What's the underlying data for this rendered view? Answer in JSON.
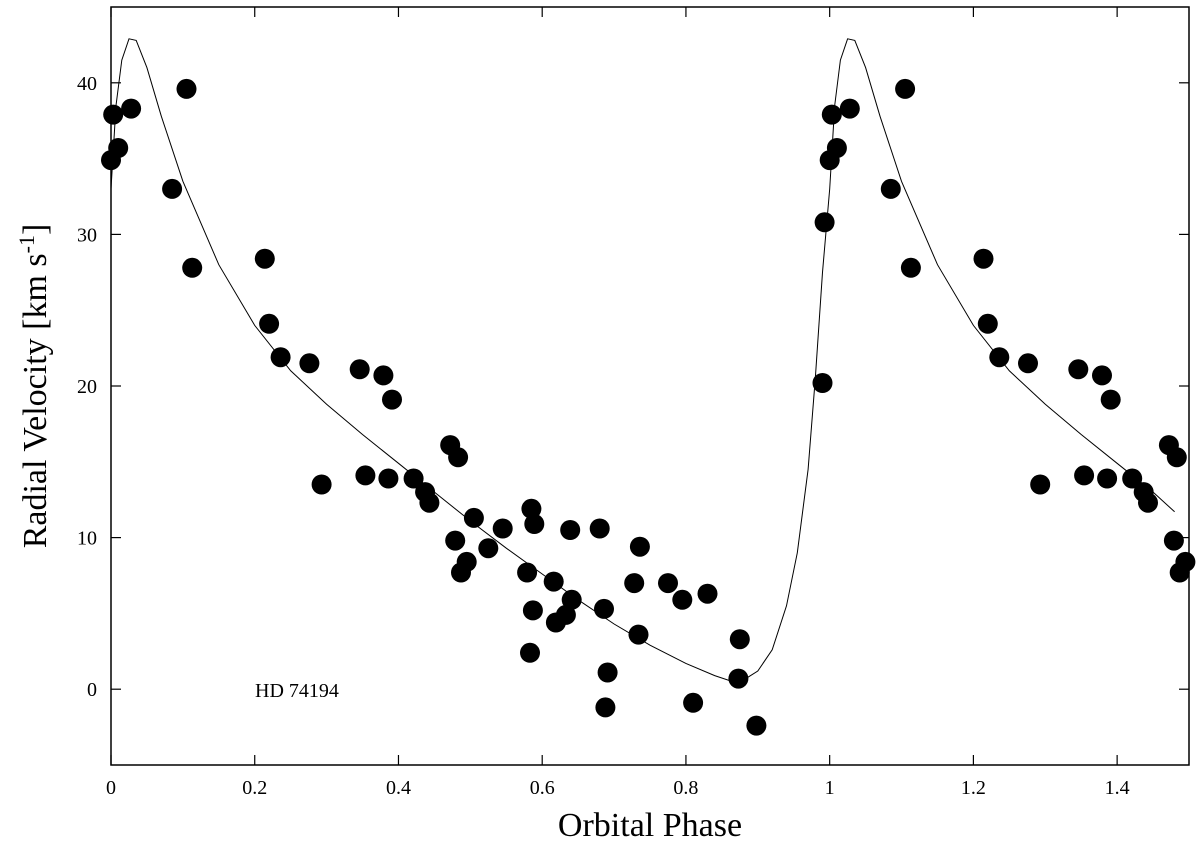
{
  "chart_data": {
    "type": "scatter",
    "title": "",
    "xlabel": "Orbital Phase",
    "ylabel_main": "Radial Velocity [km s",
    "ylabel_sup": "-1",
    "ylabel_close": "]",
    "annotation": "HD 74194",
    "xlim": [
      0,
      1.5
    ],
    "ylim": [
      -5,
      45
    ],
    "xticks": [
      {
        "v": 0,
        "label": "0"
      },
      {
        "v": 0.2,
        "label": "0.2"
      },
      {
        "v": 0.4,
        "label": "0.4"
      },
      {
        "v": 0.6,
        "label": "0.6"
      },
      {
        "v": 0.8,
        "label": "0.8"
      },
      {
        "v": 1.0,
        "label": "1"
      },
      {
        "v": 1.2,
        "label": "1.2"
      },
      {
        "v": 1.4,
        "label": "1.4"
      }
    ],
    "yticks": [
      {
        "v": 0,
        "label": "0"
      },
      {
        "v": 10,
        "label": "10"
      },
      {
        "v": 20,
        "label": "20"
      },
      {
        "v": 30,
        "label": "30"
      },
      {
        "v": 40,
        "label": "40"
      }
    ],
    "grid": false,
    "legend": "none",
    "points": [
      [
        0.0,
        34.9
      ],
      [
        0.003,
        37.9
      ],
      [
        0.01,
        35.7
      ],
      [
        0.028,
        38.3
      ],
      [
        0.085,
        33.0
      ],
      [
        0.105,
        39.6
      ],
      [
        0.113,
        27.8
      ],
      [
        0.214,
        28.4
      ],
      [
        0.22,
        24.1
      ],
      [
        0.236,
        21.9
      ],
      [
        0.276,
        21.5
      ],
      [
        0.293,
        13.5
      ],
      [
        0.346,
        21.1
      ],
      [
        0.354,
        14.1
      ],
      [
        0.379,
        20.7
      ],
      [
        0.386,
        13.9
      ],
      [
        0.391,
        19.1
      ],
      [
        0.421,
        13.9
      ],
      [
        0.437,
        13.0
      ],
      [
        0.443,
        12.3
      ],
      [
        0.472,
        16.1
      ],
      [
        0.479,
        9.8
      ],
      [
        0.483,
        15.3
      ],
      [
        0.487,
        7.7
      ],
      [
        0.495,
        8.4
      ],
      [
        0.505,
        11.3
      ],
      [
        0.525,
        9.3
      ],
      [
        0.545,
        10.6
      ],
      [
        0.579,
        7.7
      ],
      [
        0.583,
        2.4
      ],
      [
        0.585,
        11.9
      ],
      [
        0.587,
        5.2
      ],
      [
        0.589,
        10.9
      ],
      [
        0.616,
        7.1
      ],
      [
        0.619,
        4.4
      ],
      [
        0.633,
        4.9
      ],
      [
        0.639,
        10.5
      ],
      [
        0.641,
        5.9
      ],
      [
        0.68,
        10.6
      ],
      [
        0.686,
        5.3
      ],
      [
        0.688,
        -1.2
      ],
      [
        0.691,
        1.1
      ],
      [
        0.728,
        7.0
      ],
      [
        0.734,
        3.6
      ],
      [
        0.736,
        9.4
      ],
      [
        0.775,
        7.0
      ],
      [
        0.795,
        5.9
      ],
      [
        0.81,
        -0.9
      ],
      [
        0.83,
        6.3
      ],
      [
        0.873,
        0.7
      ],
      [
        0.875,
        3.3
      ],
      [
        0.898,
        -2.4
      ],
      [
        0.99,
        20.2
      ],
      [
        0.993,
        30.8
      ],
      [
        1.0,
        34.9
      ],
      [
        1.003,
        37.9
      ],
      [
        1.01,
        35.7
      ],
      [
        1.028,
        38.3
      ],
      [
        1.085,
        33.0
      ],
      [
        1.105,
        39.6
      ],
      [
        1.113,
        27.8
      ],
      [
        1.214,
        28.4
      ],
      [
        1.22,
        24.1
      ],
      [
        1.236,
        21.9
      ],
      [
        1.276,
        21.5
      ],
      [
        1.293,
        13.5
      ],
      [
        1.346,
        21.1
      ],
      [
        1.354,
        14.1
      ],
      [
        1.379,
        20.7
      ],
      [
        1.386,
        13.9
      ],
      [
        1.391,
        19.1
      ],
      [
        1.421,
        13.9
      ],
      [
        1.437,
        13.0
      ],
      [
        1.443,
        12.3
      ],
      [
        1.472,
        16.1
      ],
      [
        1.479,
        9.8
      ],
      [
        1.483,
        15.3
      ],
      [
        1.487,
        7.7
      ],
      [
        1.495,
        8.4
      ]
    ],
    "fit_curve": [
      [
        0.0,
        33.0
      ],
      [
        0.007,
        38.5
      ],
      [
        0.015,
        41.5
      ],
      [
        0.025,
        42.9
      ],
      [
        0.035,
        42.8
      ],
      [
        0.05,
        41.0
      ],
      [
        0.07,
        37.8
      ],
      [
        0.1,
        33.5
      ],
      [
        0.15,
        28.0
      ],
      [
        0.2,
        24.0
      ],
      [
        0.25,
        21.0
      ],
      [
        0.3,
        18.8
      ],
      [
        0.35,
        16.8
      ],
      [
        0.4,
        14.9
      ],
      [
        0.45,
        13.0
      ],
      [
        0.5,
        11.1
      ],
      [
        0.55,
        9.3
      ],
      [
        0.6,
        7.6
      ],
      [
        0.65,
        5.9
      ],
      [
        0.7,
        4.3
      ],
      [
        0.75,
        2.9
      ],
      [
        0.8,
        1.7
      ],
      [
        0.84,
        0.9
      ],
      [
        0.865,
        0.5
      ],
      [
        0.88,
        0.6
      ],
      [
        0.9,
        1.2
      ],
      [
        0.92,
        2.6
      ],
      [
        0.94,
        5.5
      ],
      [
        0.955,
        9.0
      ],
      [
        0.97,
        14.5
      ],
      [
        0.98,
        20.5
      ],
      [
        0.99,
        27.5
      ],
      [
        1.0,
        33.0
      ],
      [
        1.007,
        38.5
      ],
      [
        1.015,
        41.5
      ],
      [
        1.025,
        42.9
      ],
      [
        1.035,
        42.8
      ],
      [
        1.05,
        41.0
      ],
      [
        1.07,
        37.8
      ],
      [
        1.1,
        33.5
      ],
      [
        1.15,
        28.0
      ],
      [
        1.2,
        24.0
      ],
      [
        1.25,
        21.0
      ],
      [
        1.3,
        18.8
      ],
      [
        1.35,
        16.8
      ],
      [
        1.4,
        14.9
      ],
      [
        1.45,
        13.0
      ],
      [
        1.48,
        11.7
      ]
    ]
  }
}
